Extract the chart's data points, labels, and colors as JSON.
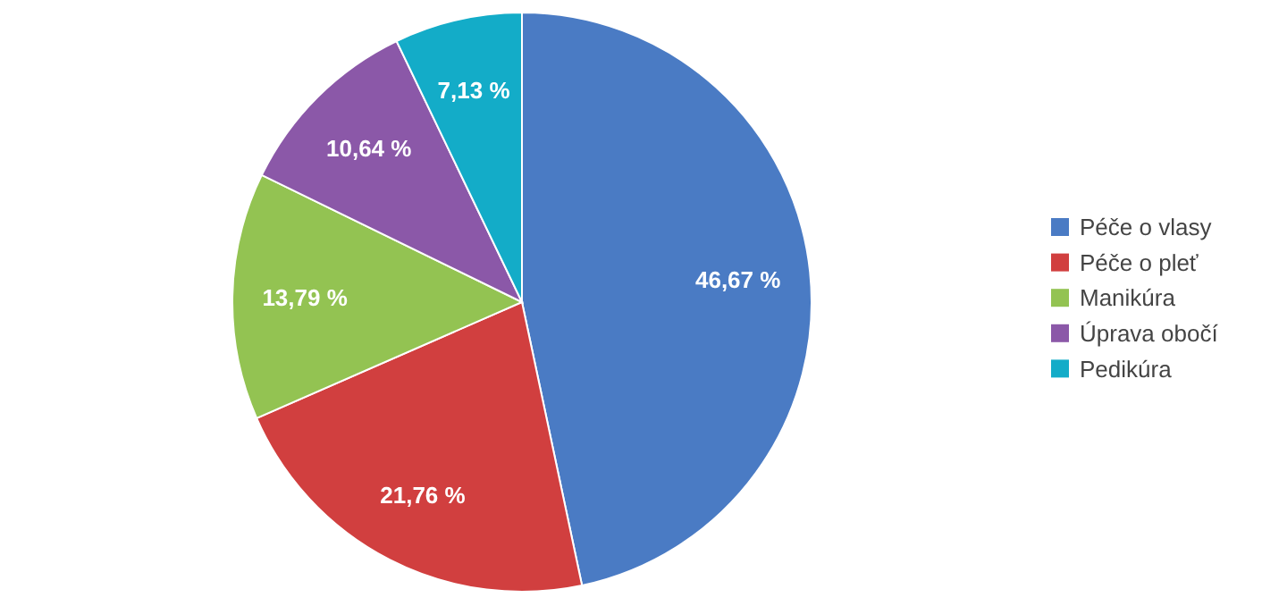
{
  "chart_data": {
    "type": "pie",
    "categories": [
      "Péče o vlasy",
      "Péče o pleť",
      "Manikúra",
      "Úprava obočí",
      "Pedikúra"
    ],
    "values": [
      46.67,
      21.76,
      13.79,
      10.64,
      7.13
    ],
    "colors": [
      "#4a7bc4",
      "#d13f3f",
      "#93c352",
      "#8b58a8",
      "#13acc8"
    ],
    "value_labels": [
      "46,67 %",
      "21,76 %",
      "13,79 %",
      "10,64 %",
      "7,13 %"
    ],
    "legend": "right"
  }
}
